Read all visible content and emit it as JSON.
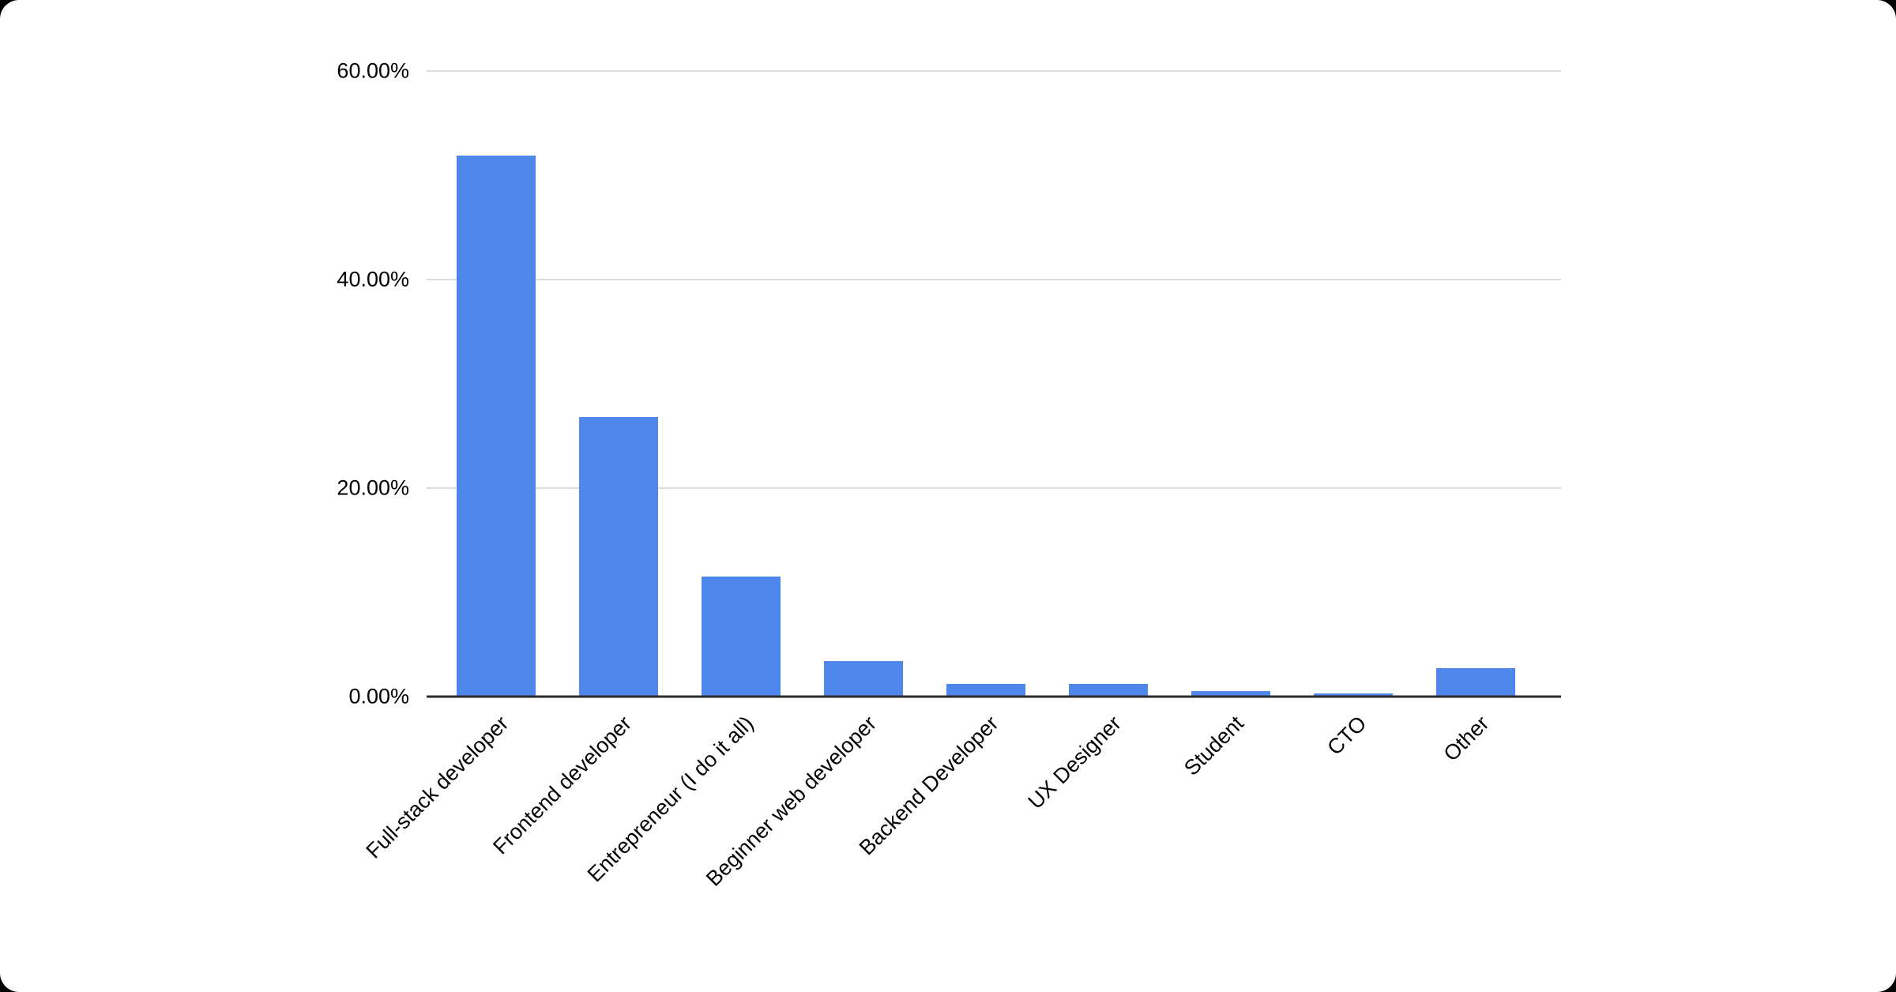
{
  "chart_data": {
    "type": "bar",
    "title": "",
    "xlabel": "",
    "ylabel": "",
    "categories": [
      "Full-stack developer",
      "Frontend developer",
      "Entrepreneur (I do it all)",
      "Beginner web developer",
      "Backend Developer",
      "UX Designer",
      "Student",
      "CTO",
      "Other"
    ],
    "values": [
      51.9,
      26.8,
      11.5,
      3.4,
      1.2,
      1.2,
      0.5,
      0.3,
      2.7
    ],
    "value_unit": "%",
    "ylim": [
      0,
      60
    ],
    "yticks": [
      {
        "label": "0.00%",
        "value": 0
      },
      {
        "label": "20.00%",
        "value": 20
      },
      {
        "label": "40.00%",
        "value": 40
      },
      {
        "label": "60.00%",
        "value": 60
      }
    ],
    "grid": true,
    "legend": "none",
    "bar_color": "#4e86ec"
  },
  "colors": {
    "card_background": "#ffffff",
    "outer_background": "#000000",
    "gridline": "#dcdcdc",
    "axis_line": "#2b2b2b",
    "text": "#000000"
  }
}
